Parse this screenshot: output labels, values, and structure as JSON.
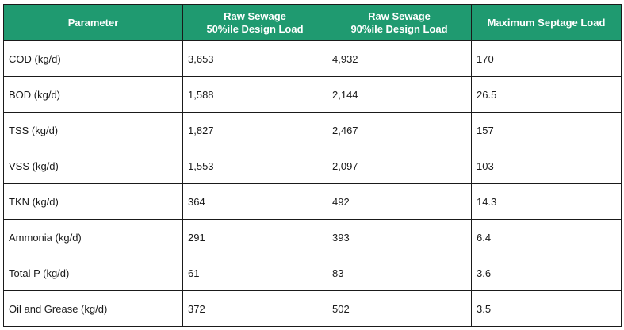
{
  "table": {
    "headers": [
      {
        "line1": "Parameter",
        "line2": ""
      },
      {
        "line1": "Raw Sewage",
        "line2": "50%ile Design Load"
      },
      {
        "line1": "Raw Sewage",
        "line2": "90%ile Design Load"
      },
      {
        "line1": "Maximum Septage Load",
        "line2": ""
      }
    ],
    "rows": [
      [
        "COD (kg/d)",
        "3,653",
        "4,932",
        "170"
      ],
      [
        "BOD (kg/d)",
        "1,588",
        "2,144",
        "26.5"
      ],
      [
        "TSS (kg/d)",
        "1,827",
        "2,467",
        "157"
      ],
      [
        "VSS (kg/d)",
        "1,553",
        "2,097",
        "103"
      ],
      [
        "TKN (kg/d)",
        "364",
        "492",
        "14.3"
      ],
      [
        "Ammonia (kg/d)",
        "291",
        "393",
        "6.4"
      ],
      [
        "Total P (kg/d)",
        "61",
        "83",
        "3.6"
      ],
      [
        "Oil and Grease (kg/d)",
        "372",
        "502",
        "3.5"
      ]
    ],
    "colors": {
      "header_background": "#1f9a70",
      "header_text": "#ffffff",
      "border": "#1a1a1a"
    }
  }
}
